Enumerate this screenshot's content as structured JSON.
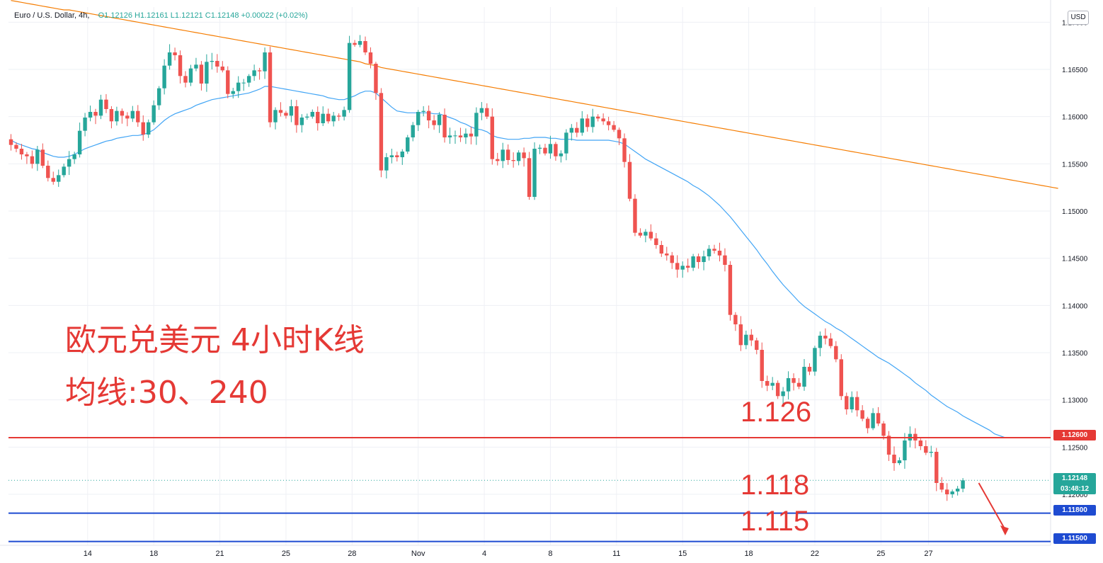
{
  "header": {
    "symbol": "Euro / U.S. Dollar, 4h,",
    "open": "O1.12126",
    "high": "H1.12161",
    "low": "L1.12121",
    "close": "C1.12148",
    "change": "+0.00022 (+0.02%)"
  },
  "currency_button": "USD",
  "annotations": {
    "title_cn": "欧元兑美元 4小时K线",
    "ma_cn": "均线:30、240",
    "level_126": "1.126",
    "level_118": "1.118",
    "level_115": "1.115"
  },
  "price_tags": {
    "red_level": "1.12600",
    "current_price": "1.12148",
    "countdown": "03:48:12",
    "blue_level_1": "1.11800",
    "blue_level_2": "1.11500"
  },
  "colors": {
    "up": "#26a69a",
    "down": "#ef5350",
    "ma30": "#42a5f5",
    "ma240": "#f57c00",
    "resistance": "#e53935",
    "support": "#1e4bd1",
    "annotation": "#e53935"
  },
  "chart_data": {
    "type": "candlestick",
    "symbol": "Euro / U.S. Dollar",
    "timeframe": "4h",
    "y_axis": {
      "min": 1.1146,
      "max": 1.1716,
      "ticks": [
        1.17,
        1.165,
        1.16,
        1.155,
        1.15,
        1.145,
        1.14,
        1.135,
        1.13,
        1.125,
        1.12
      ],
      "tick_labels": [
        "1.17000",
        "1.16500",
        "1.16000",
        "1.15500",
        "1.15000",
        "1.14500",
        "1.14000",
        "1.13500",
        "1.13000",
        "1.12500",
        "1.12000"
      ]
    },
    "x_axis": {
      "tick_labels": [
        "14",
        "18",
        "21",
        "25",
        "28",
        "Nov",
        "4",
        "8",
        "11",
        "15",
        "18",
        "22",
        "25",
        "27"
      ],
      "tick_bar_index": [
        14.5,
        27.0,
        39.5,
        52.0,
        64.5,
        77.0,
        89.5,
        102.0,
        114.5,
        127.0,
        139.5,
        152.0,
        164.5,
        173.5
      ]
    },
    "close": [
      1.157,
      1.1566,
      1.156,
      1.1558,
      1.155,
      1.1565,
      1.1548,
      1.1535,
      1.1531,
      1.1538,
      1.1547,
      1.1555,
      1.156,
      1.1585,
      1.1599,
      1.1605,
      1.1601,
      1.1618,
      1.1608,
      1.1595,
      1.1606,
      1.1601,
      1.1598,
      1.1606,
      1.1594,
      1.1581,
      1.1594,
      1.1612,
      1.163,
      1.1654,
      1.1668,
      1.1665,
      1.1643,
      1.1636,
      1.1651,
      1.1655,
      1.1635,
      1.1658,
      1.1659,
      1.1653,
      1.1649,
      1.1624,
      1.1627,
      1.1636,
      1.1636,
      1.1643,
      1.1649,
      1.1648,
      1.1668,
      1.1594,
      1.1607,
      1.1604,
      1.1601,
      1.1611,
      1.1591,
      1.1599,
      1.16,
      1.1605,
      1.1593,
      1.1603,
      1.1595,
      1.1601,
      1.16,
      1.1607,
      1.1678,
      1.1676,
      1.168,
      1.1668,
      1.1656,
      1.1625,
      1.1543,
      1.1557,
      1.1559,
      1.1557,
      1.1563,
      1.1578,
      1.1591,
      1.1605,
      1.1606,
      1.1596,
      1.1591,
      1.1602,
      1.1578,
      1.158,
      1.158,
      1.1578,
      1.1582,
      1.1579,
      1.1604,
      1.1609,
      1.16,
      1.1555,
      1.1553,
      1.1565,
      1.1554,
      1.1553,
      1.1562,
      1.1556,
      1.1515,
      1.1566,
      1.1567,
      1.1561,
      1.1571,
      1.1558,
      1.1561,
      1.1583,
      1.1588,
      1.1583,
      1.1598,
      1.1589,
      1.16,
      1.1598,
      1.1595,
      1.1591,
      1.1586,
      1.1577,
      1.1552,
      1.1513,
      1.1477,
      1.1474,
      1.1478,
      1.1471,
      1.1464,
      1.1455,
      1.1453,
      1.1445,
      1.1438,
      1.1442,
      1.144,
      1.1452,
      1.1446,
      1.1452,
      1.146,
      1.1458,
      1.1453,
      1.1443,
      1.139,
      1.138,
      1.1358,
      1.1369,
      1.1363,
      1.1353,
      1.132,
      1.1315,
      1.1318,
      1.1304,
      1.1309,
      1.1323,
      1.1318,
      1.1314,
      1.1335,
      1.133,
      1.1355,
      1.1368,
      1.1365,
      1.1357,
      1.1343,
      1.1304,
      1.129,
      1.1303,
      1.1289,
      1.128,
      1.127,
      1.1286,
      1.1275,
      1.1262,
      1.1242,
      1.1233,
      1.1236,
      1.1257,
      1.1264,
      1.1257,
      1.1251,
      1.1244,
      1.1245,
      1.1212,
      1.1205,
      1.12,
      1.1203,
      1.1206,
      1.12148
    ],
    "ma30": [
      1.1575,
      1.1572,
      1.157,
      1.1568,
      1.1566,
      1.1565,
      1.1562,
      1.156,
      1.1558,
      1.1557,
      1.1557,
      1.1558,
      1.156,
      1.1563,
      1.1566,
      1.1568,
      1.157,
      1.1572,
      1.1574,
      1.1575,
      1.1577,
      1.1578,
      1.1579,
      1.158,
      1.158,
      1.1581,
      1.1583,
      1.1586,
      1.1591,
      1.1596,
      1.16,
      1.1603,
      1.1605,
      1.1607,
      1.1609,
      1.1612,
      1.1614,
      1.1616,
      1.1618,
      1.1619,
      1.162,
      1.1621,
      1.1622,
      1.1623,
      1.1624,
      1.1625,
      1.1627,
      1.1629,
      1.1632,
      1.1632,
      1.1631,
      1.163,
      1.1629,
      1.1628,
      1.1627,
      1.1626,
      1.1625,
      1.1624,
      1.1623,
      1.1622,
      1.162,
      1.1619,
      1.1618,
      1.1618,
      1.162,
      1.1622,
      1.1625,
      1.1627,
      1.1627,
      1.1625,
      1.162,
      1.1615,
      1.161,
      1.1606,
      1.1605,
      1.1604,
      1.1604,
      1.1604,
      1.1604,
      1.1604,
      1.1603,
      1.1603,
      1.1601,
      1.1599,
      1.1597,
      1.1594,
      1.1592,
      1.1589,
      1.1587,
      1.1586,
      1.1584,
      1.158,
      1.1578,
      1.1577,
      1.1576,
      1.1576,
      1.1576,
      1.1577,
      1.1577,
      1.1578,
      1.1578,
      1.1578,
      1.1577,
      1.1577,
      1.1576,
      1.1576,
      1.1576,
      1.1575,
      1.1575,
      1.1575,
      1.1575,
      1.1575,
      1.1575,
      1.1575,
      1.1574,
      1.1573,
      1.1571,
      1.1567,
      1.1563,
      1.1559,
      1.1555,
      1.1552,
      1.1549,
      1.1546,
      1.1543,
      1.154,
      1.1537,
      1.1534,
      1.1531,
      1.1527,
      1.1524,
      1.152,
      1.1516,
      1.1511,
      1.1506,
      1.15,
      1.1494,
      1.1487,
      1.148,
      1.1473,
      1.1466,
      1.1459,
      1.1451,
      1.1444,
      1.1436,
      1.1429,
      1.1422,
      1.1416,
      1.141,
      1.1404,
      1.1399,
      1.1395,
      1.1391,
      1.1387,
      1.1383,
      1.138,
      1.1376,
      1.1373,
      1.1369,
      1.1365,
      1.1361,
      1.1357,
      1.1353,
      1.1349,
      1.1345,
      1.1342,
      1.1339,
      1.1335,
      1.1331,
      1.1327,
      1.1323,
      1.1318,
      1.1314,
      1.131,
      1.1305,
      1.1301,
      1.1297,
      1.1293,
      1.129,
      1.1287,
      1.1283,
      1.128,
      1.1277,
      1.1274,
      1.1271,
      1.1268,
      1.1264,
      1.1262,
      1.126
    ],
    "ma240": [
      1.1723,
      1.1722,
      1.1721,
      1.172,
      1.1719,
      1.1718,
      1.1717,
      1.1716,
      1.1715,
      1.1714,
      1.1713,
      1.1713,
      1.1712,
      1.1711,
      1.171,
      1.1709,
      1.1708,
      1.1707,
      1.1706,
      1.1705,
      1.1704,
      1.1703,
      1.1702,
      1.1701,
      1.17,
      1.1699,
      1.1698,
      1.1697,
      1.1696,
      1.1695,
      1.1694,
      1.1693,
      1.1692,
      1.1691,
      1.169,
      1.1689,
      1.1688,
      1.1687,
      1.1686,
      1.1685,
      1.1684,
      1.1683,
      1.1682,
      1.1681,
      1.168,
      1.1679,
      1.1678,
      1.1677,
      1.1676,
      1.1675,
      1.1674,
      1.1673,
      1.1672,
      1.1671,
      1.167,
      1.1669,
      1.1668,
      1.1667,
      1.1666,
      1.1665,
      1.1664,
      1.1663,
      1.1662,
      1.1661,
      1.166,
      1.1659,
      1.1658,
      1.1656,
      1.1655,
      1.1654,
      1.1652,
      1.1651,
      1.165,
      1.1649,
      1.1648,
      1.1647,
      1.1646,
      1.1645,
      1.1644,
      1.1643,
      1.1642,
      1.1641,
      1.164,
      1.1639,
      1.1638,
      1.1637,
      1.1636,
      1.1635,
      1.1634,
      1.1633,
      1.1632,
      1.1631,
      1.163,
      1.1629,
      1.1628,
      1.1627,
      1.1626,
      1.1625,
      1.1624,
      1.1623,
      1.1622,
      1.1621,
      1.162,
      1.1619,
      1.1618,
      1.1617,
      1.1616,
      1.1615,
      1.1614,
      1.1613,
      1.1612,
      1.1611,
      1.161,
      1.1609,
      1.1608,
      1.1607,
      1.1606,
      1.1605,
      1.1604,
      1.1603,
      1.1602,
      1.1601,
      1.16,
      1.1599,
      1.1598,
      1.1597,
      1.1596,
      1.1595,
      1.1594,
      1.1593,
      1.1592,
      1.1591,
      1.159,
      1.1589,
      1.1588,
      1.1587,
      1.1586,
      1.1585,
      1.1584,
      1.1583,
      1.1582,
      1.1581,
      1.158,
      1.1579,
      1.1578,
      1.1577,
      1.1576,
      1.1575,
      1.1574,
      1.1573,
      1.1572,
      1.1571,
      1.157,
      1.1569,
      1.1568,
      1.1567,
      1.1566,
      1.1565,
      1.1564,
      1.1563,
      1.1562,
      1.1561,
      1.156,
      1.1559,
      1.1558,
      1.1557,
      1.1556,
      1.1555,
      1.1554,
      1.1553,
      1.1552,
      1.1551,
      1.155,
      1.1549,
      1.1548,
      1.1547,
      1.1546,
      1.1545,
      1.1544,
      1.1543,
      1.1542,
      1.1541,
      1.154,
      1.1539,
      1.1538,
      1.1537,
      1.1536,
      1.1535,
      1.1534,
      1.1533,
      1.1532,
      1.1531,
      1.153,
      1.1529,
      1.1528,
      1.1527,
      1.1526,
      1.1525,
      1.1524
    ],
    "horizontal_lines": [
      {
        "value": 1.126,
        "color": "#e53935"
      },
      {
        "value": 1.118,
        "color": "#1e4bd1"
      },
      {
        "value": 1.115,
        "color": "#1e4bd1"
      }
    ],
    "current_price_line": 1.12148,
    "arrow": {
      "from_bar": 183,
      "from_value": 1.1212,
      "to_bar": 188,
      "to_value": 1.1158,
      "color": "#e53935"
    },
    "grid": true
  }
}
